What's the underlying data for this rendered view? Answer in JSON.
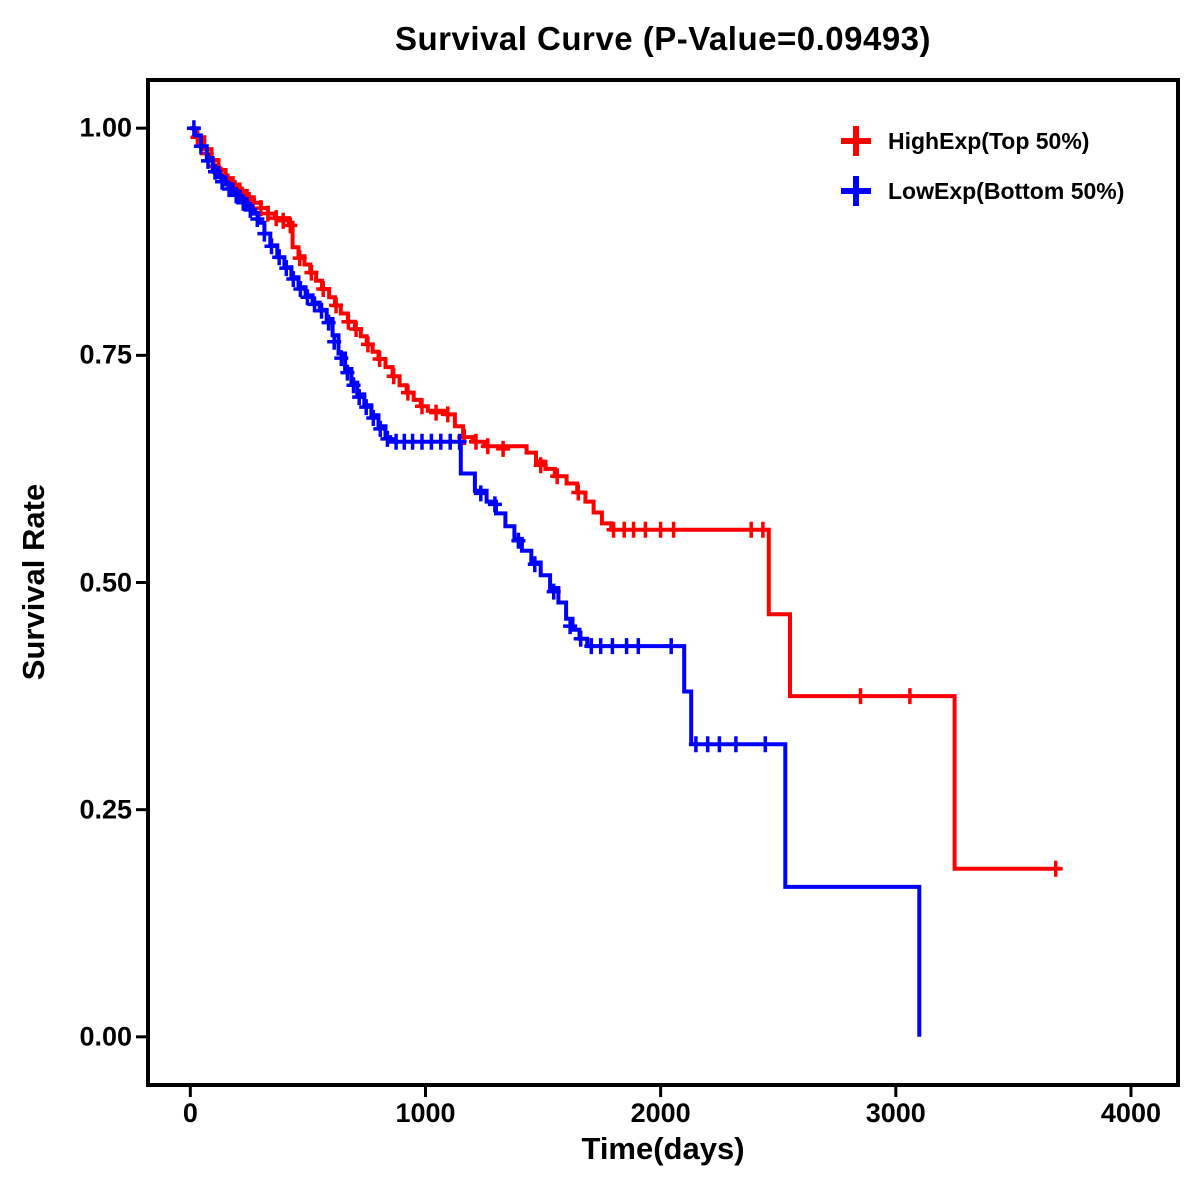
{
  "chart_data": {
    "type": "line",
    "subtype": "kaplan-meier-step",
    "title": "Survival Curve (P-Value=0.09493)",
    "xlabel": "Time(days)",
    "ylabel": "Survival Rate",
    "xlim": [
      -180,
      4200
    ],
    "ylim": [
      -0.053,
      1.053
    ],
    "xticks": [
      0,
      1000,
      2000,
      3000,
      4000
    ],
    "xtick_labels": [
      "0",
      "1000",
      "2000",
      "3000",
      "4000"
    ],
    "yticks": [
      0.0,
      0.25,
      0.5,
      0.75,
      1.0
    ],
    "ytick_labels": [
      "0.00",
      "0.25",
      "0.50",
      "0.75",
      "1.00"
    ],
    "grid": false,
    "legend_position": "top-right",
    "series": [
      {
        "name": "HighExp(Top 50%)",
        "color": "#FF0000",
        "steps": [
          [
            0,
            1.0
          ],
          [
            30,
            0.99
          ],
          [
            60,
            0.977
          ],
          [
            90,
            0.965
          ],
          [
            120,
            0.954
          ],
          [
            150,
            0.945
          ],
          [
            180,
            0.938
          ],
          [
            210,
            0.931
          ],
          [
            240,
            0.924
          ],
          [
            270,
            0.918
          ],
          [
            300,
            0.912
          ],
          [
            330,
            0.906
          ],
          [
            360,
            0.901
          ],
          [
            420,
            0.896
          ],
          [
            435,
            0.869
          ],
          [
            460,
            0.859
          ],
          [
            485,
            0.85
          ],
          [
            510,
            0.841
          ],
          [
            535,
            0.832
          ],
          [
            560,
            0.823
          ],
          [
            590,
            0.814
          ],
          [
            615,
            0.805
          ],
          [
            640,
            0.796
          ],
          [
            670,
            0.787
          ],
          [
            700,
            0.779
          ],
          [
            725,
            0.771
          ],
          [
            750,
            0.762
          ],
          [
            775,
            0.754
          ],
          [
            800,
            0.746
          ],
          [
            830,
            0.737
          ],
          [
            860,
            0.727
          ],
          [
            890,
            0.717
          ],
          [
            920,
            0.709
          ],
          [
            950,
            0.701
          ],
          [
            980,
            0.694
          ],
          [
            1010,
            0.689
          ],
          [
            1090,
            0.685
          ],
          [
            1125,
            0.672
          ],
          [
            1160,
            0.66
          ],
          [
            1200,
            0.655
          ],
          [
            1250,
            0.65
          ],
          [
            1430,
            0.643
          ],
          [
            1470,
            0.633
          ],
          [
            1510,
            0.625
          ],
          [
            1550,
            0.617
          ],
          [
            1600,
            0.609
          ],
          [
            1645,
            0.599
          ],
          [
            1680,
            0.589
          ],
          [
            1715,
            0.577
          ],
          [
            1750,
            0.565
          ],
          [
            1790,
            0.558
          ],
          [
            2460,
            0.465
          ],
          [
            2550,
            0.375
          ],
          [
            3250,
            0.185
          ],
          [
            3700,
            0.185
          ]
        ],
        "censors": [
          [
            30,
            0.99
          ],
          [
            70,
            0.972
          ],
          [
            100,
            0.958
          ],
          [
            130,
            0.949
          ],
          [
            160,
            0.941
          ],
          [
            190,
            0.934
          ],
          [
            220,
            0.927
          ],
          [
            250,
            0.921
          ],
          [
            300,
            0.912
          ],
          [
            330,
            0.906
          ],
          [
            365,
            0.901
          ],
          [
            395,
            0.898
          ],
          [
            425,
            0.893
          ],
          [
            465,
            0.857
          ],
          [
            515,
            0.841
          ],
          [
            565,
            0.823
          ],
          [
            620,
            0.805
          ],
          [
            672,
            0.787
          ],
          [
            705,
            0.779
          ],
          [
            755,
            0.762
          ],
          [
            805,
            0.746
          ],
          [
            865,
            0.727
          ],
          [
            925,
            0.709
          ],
          [
            985,
            0.694
          ],
          [
            1045,
            0.687
          ],
          [
            1095,
            0.685
          ],
          [
            1165,
            0.66
          ],
          [
            1215,
            0.655
          ],
          [
            1265,
            0.65
          ],
          [
            1330,
            0.647
          ],
          [
            1490,
            0.629
          ],
          [
            1560,
            0.617
          ],
          [
            1650,
            0.599
          ],
          [
            1800,
            0.558
          ],
          [
            1845,
            0.558
          ],
          [
            1885,
            0.558
          ],
          [
            1935,
            0.558
          ],
          [
            2000,
            0.558
          ],
          [
            2055,
            0.558
          ],
          [
            2385,
            0.558
          ],
          [
            2435,
            0.558
          ],
          [
            2850,
            0.375
          ],
          [
            3060,
            0.375
          ],
          [
            3680,
            0.185
          ]
        ]
      },
      {
        "name": "LowExp(Bottom 50%)",
        "color": "#0000FF",
        "steps": [
          [
            0,
            1.0
          ],
          [
            20,
            0.992
          ],
          [
            45,
            0.98
          ],
          [
            70,
            0.967
          ],
          [
            95,
            0.956
          ],
          [
            120,
            0.946
          ],
          [
            150,
            0.938
          ],
          [
            180,
            0.93
          ],
          [
            210,
            0.922
          ],
          [
            240,
            0.914
          ],
          [
            265,
            0.906
          ],
          [
            290,
            0.896
          ],
          [
            315,
            0.884
          ],
          [
            340,
            0.871
          ],
          [
            370,
            0.858
          ],
          [
            400,
            0.847
          ],
          [
            430,
            0.836
          ],
          [
            460,
            0.825
          ],
          [
            490,
            0.816
          ],
          [
            520,
            0.808
          ],
          [
            550,
            0.8
          ],
          [
            580,
            0.79
          ],
          [
            605,
            0.772
          ],
          [
            630,
            0.752
          ],
          [
            658,
            0.735
          ],
          [
            685,
            0.72
          ],
          [
            710,
            0.707
          ],
          [
            740,
            0.695
          ],
          [
            770,
            0.684
          ],
          [
            800,
            0.672
          ],
          [
            830,
            0.66
          ],
          [
            850,
            0.655
          ],
          [
            1150,
            0.62
          ],
          [
            1210,
            0.601
          ],
          [
            1260,
            0.589
          ],
          [
            1300,
            0.576
          ],
          [
            1340,
            0.562
          ],
          [
            1378,
            0.548
          ],
          [
            1410,
            0.535
          ],
          [
            1450,
            0.522
          ],
          [
            1490,
            0.508
          ],
          [
            1530,
            0.494
          ],
          [
            1565,
            0.478
          ],
          [
            1598,
            0.46
          ],
          [
            1625,
            0.448
          ],
          [
            1655,
            0.438
          ],
          [
            1688,
            0.43
          ],
          [
            2100,
            0.38
          ],
          [
            2130,
            0.322
          ],
          [
            2530,
            0.165
          ],
          [
            3100,
            0.0
          ]
        ],
        "censors": [
          [
            15,
            1.0
          ],
          [
            45,
            0.98
          ],
          [
            75,
            0.964
          ],
          [
            105,
            0.952
          ],
          [
            135,
            0.941
          ],
          [
            165,
            0.933
          ],
          [
            195,
            0.926
          ],
          [
            225,
            0.918
          ],
          [
            255,
            0.91
          ],
          [
            285,
            0.9
          ],
          [
            315,
            0.884
          ],
          [
            345,
            0.87
          ],
          [
            378,
            0.858
          ],
          [
            408,
            0.846
          ],
          [
            438,
            0.834
          ],
          [
            468,
            0.823
          ],
          [
            498,
            0.814
          ],
          [
            528,
            0.806
          ],
          [
            558,
            0.799
          ],
          [
            588,
            0.786
          ],
          [
            612,
            0.765
          ],
          [
            642,
            0.747
          ],
          [
            668,
            0.731
          ],
          [
            694,
            0.717
          ],
          [
            718,
            0.704
          ],
          [
            748,
            0.693
          ],
          [
            778,
            0.681
          ],
          [
            808,
            0.669
          ],
          [
            838,
            0.658
          ],
          [
            875,
            0.655
          ],
          [
            910,
            0.655
          ],
          [
            945,
            0.655
          ],
          [
            985,
            0.655
          ],
          [
            1025,
            0.655
          ],
          [
            1065,
            0.655
          ],
          [
            1105,
            0.655
          ],
          [
            1145,
            0.655
          ],
          [
            1235,
            0.598
          ],
          [
            1295,
            0.586
          ],
          [
            1395,
            0.546
          ],
          [
            1465,
            0.52
          ],
          [
            1545,
            0.49
          ],
          [
            1615,
            0.452
          ],
          [
            1660,
            0.438
          ],
          [
            1705,
            0.43
          ],
          [
            1745,
            0.43
          ],
          [
            1795,
            0.43
          ],
          [
            1855,
            0.43
          ],
          [
            1905,
            0.43
          ],
          [
            2045,
            0.43
          ],
          [
            2150,
            0.322
          ],
          [
            2200,
            0.322
          ],
          [
            2250,
            0.322
          ],
          [
            2320,
            0.322
          ],
          [
            2445,
            0.322
          ]
        ]
      }
    ]
  }
}
